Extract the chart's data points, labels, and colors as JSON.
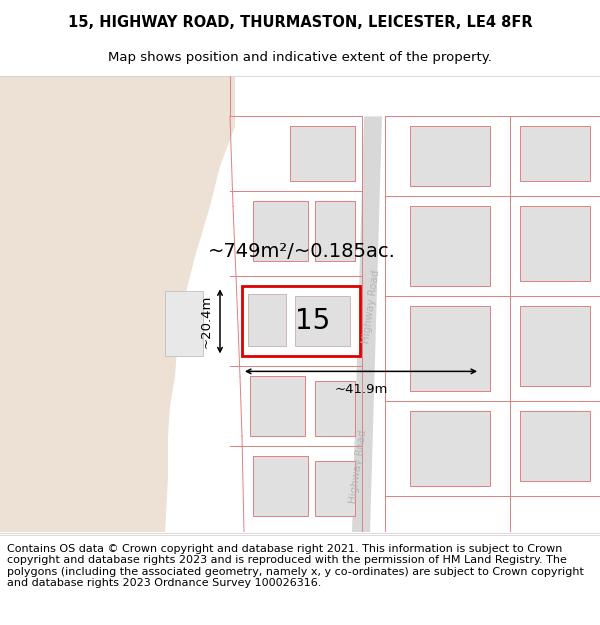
{
  "title_line1": "15, HIGHWAY ROAD, THURMASTON, LEICESTER, LE4 8FR",
  "title_line2": "Map shows position and indicative extent of the property.",
  "footer_text": "Contains OS data © Crown copyright and database right 2021. This information is subject to Crown copyright and database rights 2023 and is reproduced with the permission of HM Land Registry. The polygons (including the associated geometry, namely x, y co-ordinates) are subject to Crown copyright and database rights 2023 Ordnance Survey 100026316.",
  "area_label": "~749m²/~0.185ac.",
  "width_label": "~41.9m",
  "height_label": "~20.4m",
  "number_label": "15",
  "pink_line_color": "#e08080",
  "road_text_color": "#b0b0b0",
  "title_fontsize": 10.5,
  "subtitle_fontsize": 9.5,
  "footer_fontsize": 8.0
}
